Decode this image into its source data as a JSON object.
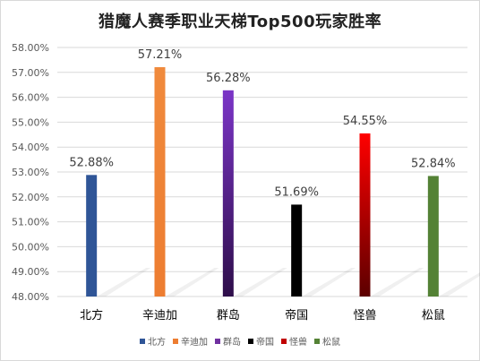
{
  "chart_data": {
    "type": "bar",
    "title": "猎魔人赛季职业天梯Top500玩家胜率",
    "categories": [
      "北方",
      "辛迪加",
      "群岛",
      "帝国",
      "怪兽",
      "松鼠"
    ],
    "values": [
      52.88,
      57.21,
      56.28,
      51.69,
      54.55,
      52.84
    ],
    "data_labels": [
      "52.88%",
      "57.21%",
      "56.28%",
      "51.69%",
      "54.55%",
      "52.84%"
    ],
    "colors": [
      "#2f5597",
      "#ed7d31",
      "#7030a0",
      "#000000",
      "#c00000",
      "#548235"
    ],
    "yticks": [
      "48.00%",
      "49.00%",
      "50.00%",
      "51.00%",
      "52.00%",
      "53.00%",
      "54.00%",
      "55.00%",
      "56.00%",
      "57.00%",
      "58.00%"
    ],
    "ylim": [
      48,
      58
    ],
    "grid": true,
    "legend": "bottom",
    "xlabel": "",
    "ylabel": ""
  }
}
